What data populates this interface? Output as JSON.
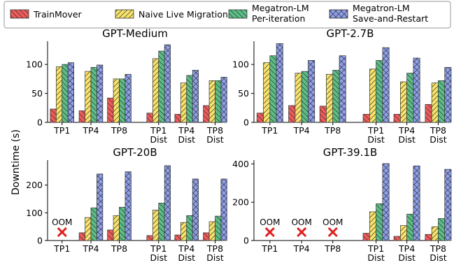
{
  "legend": [
    {
      "name": "TrainMover",
      "color": "#f05a5a",
      "hatch": "diag-back"
    },
    {
      "name": "Naive Live Migration",
      "color": "#f7e36a",
      "hatch": "diag-fwd"
    },
    {
      "name": "Megatron-LM\nPer-iteration",
      "color": "#5bbf86",
      "hatch": "diag-back"
    },
    {
      "name": "Megatron-LM\nSave-and-Restart",
      "color": "#8ea0ec",
      "hatch": "cross"
    }
  ],
  "shared_ylabel": "Downtime (s)",
  "chart_data": [
    {
      "type": "bar",
      "title": "GPT-Medium",
      "categories": [
        "TP1",
        "TP4",
        "TP8",
        "TP1\nDist",
        "TP4\nDist",
        "TP8\nDist"
      ],
      "ylim": [
        0,
        140
      ],
      "yticks": [
        0,
        50,
        100
      ],
      "series": [
        {
          "name": "TrainMover",
          "values": [
            23,
            20,
            42,
            16,
            14,
            29
          ]
        },
        {
          "name": "Naive Live Migration",
          "values": [
            96,
            88,
            75,
            110,
            68,
            72
          ]
        },
        {
          "name": "Megatron-LM Per-iteration",
          "values": [
            100,
            95,
            75,
            123,
            81,
            72
          ]
        },
        {
          "name": "Megatron-LM Save-and-Restart",
          "values": [
            103,
            99,
            83,
            134,
            90,
            78
          ]
        }
      ],
      "oom_text": ""
    },
    {
      "type": "bar",
      "title": "GPT-2.7B",
      "categories": [
        "TP1",
        "TP4",
        "TP8",
        "TP1\nDist",
        "TP4\nDist",
        "TP8\nDist"
      ],
      "ylim": [
        0,
        140
      ],
      "yticks": [
        0,
        50,
        100
      ],
      "series": [
        {
          "name": "TrainMover",
          "values": [
            16,
            29,
            28,
            14,
            14,
            31
          ]
        },
        {
          "name": "Naive Live Migration",
          "values": [
            103,
            85,
            83,
            92,
            70,
            68
          ]
        },
        {
          "name": "Megatron-LM Per-iteration",
          "values": [
            115,
            88,
            90,
            107,
            85,
            72
          ]
        },
        {
          "name": "Megatron-LM Save-and-Restart",
          "values": [
            136,
            107,
            115,
            129,
            111,
            95
          ]
        }
      ],
      "oom_text": ""
    },
    {
      "type": "bar",
      "title": "GPT-20B",
      "categories": [
        "TP1",
        "TP4",
        "TP8",
        "TP1\nDist",
        "TP4\nDist",
        "TP8\nDist"
      ],
      "ylim": [
        0,
        290
      ],
      "yticks": [
        0,
        100,
        200
      ],
      "series": [
        {
          "name": "TrainMover",
          "values": [
            0,
            28,
            38,
            18,
            20,
            28
          ]
        },
        {
          "name": "Naive Live Migration",
          "values": [
            0,
            83,
            90,
            110,
            65,
            68
          ]
        },
        {
          "name": "Megatron-LM Per-iteration",
          "values": [
            0,
            118,
            120,
            135,
            90,
            88
          ]
        },
        {
          "name": "Megatron-LM Save-and-Restart",
          "values": [
            0,
            240,
            248,
            270,
            222,
            222
          ]
        }
      ],
      "oom": [
        0
      ],
      "oom_text": "OOM"
    },
    {
      "type": "bar",
      "title": "GPT-39.1B",
      "categories": [
        "TP1",
        "TP4",
        "TP8",
        "TP1\nDist",
        "TP4\nDist",
        "TP8\nDist"
      ],
      "ylim": [
        0,
        420
      ],
      "yticks": [
        0,
        200,
        400
      ],
      "series": [
        {
          "name": "TrainMover",
          "values": [
            0,
            0,
            0,
            38,
            22,
            32
          ]
        },
        {
          "name": "Naive Live Migration",
          "values": [
            0,
            0,
            0,
            150,
            78,
            72
          ]
        },
        {
          "name": "Megatron-LM Per-iteration",
          "values": [
            0,
            0,
            0,
            192,
            138,
            115
          ]
        },
        {
          "name": "Megatron-LM Save-and-Restart",
          "values": [
            0,
            0,
            0,
            402,
            390,
            372
          ]
        }
      ],
      "oom": [
        0,
        1,
        2
      ],
      "oom_text": "OOM"
    }
  ]
}
